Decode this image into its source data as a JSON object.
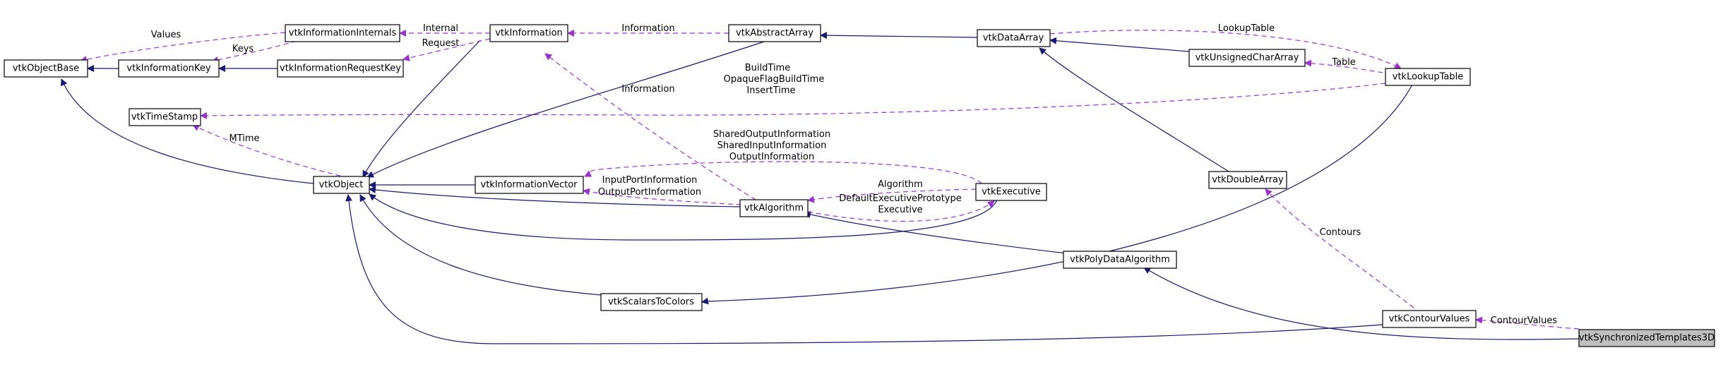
{
  "colors": {
    "inherit_edge": "#191970",
    "usage_edge": "#9a32cd",
    "focus_fill": "#bfbfbf"
  },
  "nodes": {
    "vtkObjectBase": "vtkObjectBase",
    "vtkInformationKey": "vtkInformationKey",
    "vtkInformationInternals": "vtkInformationInternals",
    "vtkInformationRequestKey": "vtkInformationRequestKey",
    "vtkInformation": "vtkInformation",
    "vtkAbstractArray": "vtkAbstractArray",
    "vtkDataArray": "vtkDataArray",
    "vtkUnsignedCharArray": "vtkUnsignedCharArray",
    "vtkLookupTable": "vtkLookupTable",
    "vtkTimeStamp": "vtkTimeStamp",
    "vtkObject": "vtkObject",
    "vtkInformationVector": "vtkInformationVector",
    "vtkAlgorithm": "vtkAlgorithm",
    "vtkExecutive": "vtkExecutive",
    "vtkDoubleArray": "vtkDoubleArray",
    "vtkPolyDataAlgorithm": "vtkPolyDataAlgorithm",
    "vtkScalarsToColors": "vtkScalarsToColors",
    "vtkContourValues": "vtkContourValues",
    "vtkSynchronizedTemplates3D": "vtkSynchronizedTemplates3D"
  },
  "edge_labels": {
    "values": "Values",
    "keys": "Keys",
    "internal": "Internal",
    "request": "Request",
    "information_top": "Information",
    "lookup_table": "LookupTable",
    "table": "Table",
    "build_time": "BuildTime",
    "opaque_flag_build_time": "OpaqueFlagBuildTime",
    "insert_time": "InsertTime",
    "information_mid": "Information",
    "mtime": "MTime",
    "shared_output_information": "SharedOutputInformation",
    "shared_input_information": "SharedInputInformation",
    "output_information": "OutputInformation",
    "input_port_information": "InputPortInformation",
    "output_port_information": "OutputPortInformation",
    "algorithm": "Algorithm",
    "default_executive_prototype": "DefaultExecutivePrototype",
    "executive": "Executive",
    "contours": "Contours",
    "contour_values": "ContourValues"
  }
}
